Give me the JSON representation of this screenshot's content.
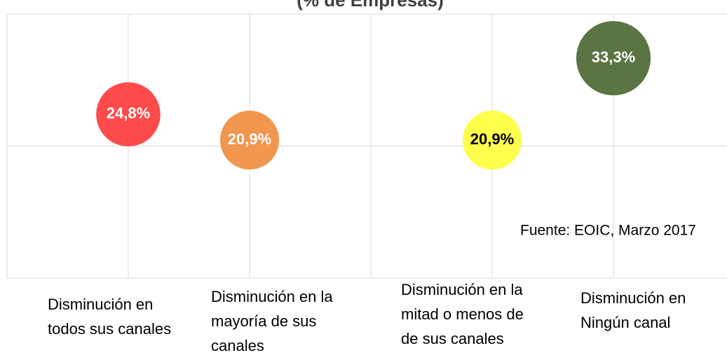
{
  "chart_data": {
    "type": "bubble",
    "title": "(% de Empresas)",
    "x": [
      1,
      2,
      4,
      5
    ],
    "x_labels": [
      [
        "Disminución en",
        "todos sus canales"
      ],
      [
        "Disminución en la",
        "mayoría de sus",
        "canales"
      ],
      [
        "Disminución en la",
        "mitad o menos de",
        "de sus canales"
      ],
      [
        "Disminución en",
        "Ningún canal"
      ]
    ],
    "values": [
      24.8,
      20.9,
      20.9,
      33.3
    ],
    "value_labels": [
      "24,8%",
      "20,9%",
      "20,9%",
      "33,3%"
    ],
    "colors": [
      "#ff4b4b",
      "#f0964e",
      "#ffff4d",
      "#5a7443"
    ],
    "label_colors": [
      "#ffffff",
      "#ffffff",
      "#000000",
      "#ffffff"
    ],
    "xlim": [
      0,
      6
    ],
    "xticks": [
      1,
      2,
      3,
      4,
      5
    ],
    "ylim": [
      0,
      40
    ],
    "yticks": [
      0,
      20,
      40
    ],
    "grid": true,
    "annotation": "Fuente: EOIC, Marzo 2017"
  }
}
